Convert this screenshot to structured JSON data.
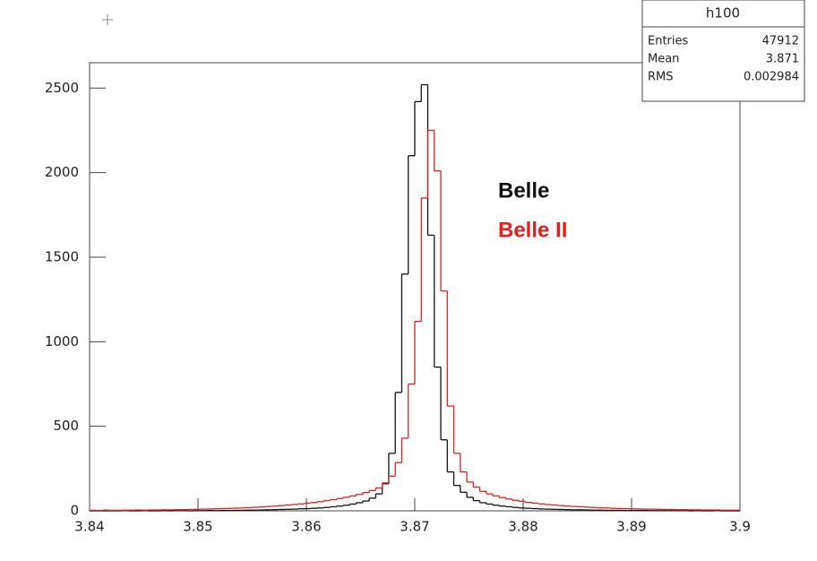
{
  "chart_data": {
    "type": "histogram",
    "bins": [
      3.84,
      3.8406,
      3.8412,
      3.8418,
      3.8424,
      3.843,
      3.8436,
      3.8442,
      3.8448,
      3.8454,
      3.846,
      3.8466,
      3.8472,
      3.8478,
      3.8484,
      3.849,
      3.8496,
      3.8502,
      3.8508,
      3.8514,
      3.852,
      3.8526,
      3.8532,
      3.8538,
      3.8544,
      3.855,
      3.8556,
      3.8562,
      3.8568,
      3.8574,
      3.858,
      3.8586,
      3.8592,
      3.8598,
      3.8604,
      3.861,
      3.8616,
      3.8622,
      3.8628,
      3.8634,
      3.864,
      3.8646,
      3.8652,
      3.8658,
      3.8664,
      3.867,
      3.8676,
      3.8682,
      3.8688,
      3.8694,
      3.87,
      3.8706,
      3.8712,
      3.8718,
      3.8724,
      3.873,
      3.8736,
      3.8742,
      3.8748,
      3.8754,
      3.876,
      3.8766,
      3.8772,
      3.8778,
      3.8784,
      3.879,
      3.8796,
      3.8802,
      3.8808,
      3.8814,
      3.882,
      3.8826,
      3.8832,
      3.8838,
      3.8844,
      3.885,
      3.8856,
      3.8862,
      3.8868,
      3.8874,
      3.888,
      3.8886,
      3.8892,
      3.8898,
      3.8904,
      3.891,
      3.8916,
      3.8922,
      3.8928,
      3.8934,
      3.894,
      3.8946,
      3.8952,
      3.8958,
      3.8964,
      3.897,
      3.8976,
      3.8982,
      3.8988,
      3.8994,
      3.9
    ],
    "series": [
      {
        "name": "Belle",
        "color": "#111111",
        "values": [
          0,
          0,
          0,
          0,
          0,
          1,
          0,
          0,
          1,
          0,
          0,
          1,
          0,
          1,
          1,
          0,
          1,
          1,
          2,
          1,
          2,
          2,
          3,
          3,
          4,
          4,
          5,
          6,
          7,
          8,
          9,
          10,
          12,
          13,
          15,
          17,
          20,
          24,
          28,
          33,
          40,
          48,
          58,
          75,
          100,
          160,
          340,
          700,
          1400,
          2100,
          2420,
          2520,
          1630,
          850,
          420,
          230,
          150,
          110,
          80,
          60,
          48,
          40,
          33,
          28,
          24,
          20,
          17,
          15,
          13,
          11,
          10,
          9,
          8,
          7,
          6,
          6,
          5,
          4,
          4,
          3,
          3,
          3,
          2,
          2,
          2,
          2,
          1,
          1,
          1,
          1,
          1,
          1,
          0,
          1,
          0,
          0,
          1,
          0,
          0,
          0
        ]
      },
      {
        "name": "Belle II",
        "color": "#e02020",
        "values": [
          3,
          2,
          4,
          3,
          3,
          4,
          4,
          5,
          4,
          5,
          5,
          6,
          6,
          7,
          7,
          8,
          9,
          10,
          11,
          12,
          13,
          14,
          16,
          17,
          19,
          21,
          23,
          26,
          28,
          31,
          34,
          37,
          41,
          45,
          49,
          54,
          60,
          66,
          73,
          80,
          88,
          97,
          108,
          120,
          135,
          165,
          205,
          285,
          430,
          750,
          1120,
          1850,
          2250,
          2010,
          1300,
          620,
          340,
          230,
          170,
          140,
          115,
          100,
          88,
          78,
          70,
          62,
          56,
          50,
          45,
          41,
          37,
          34,
          31,
          28,
          26,
          24,
          22,
          20,
          18,
          17,
          15,
          14,
          13,
          12,
          11,
          10,
          10,
          9,
          8,
          8,
          7,
          7,
          6,
          6,
          5,
          5,
          5,
          4,
          4,
          4
        ]
      }
    ],
    "xlim": [
      3.84,
      3.9
    ],
    "ylim": [
      0,
      2650
    ],
    "xticks": [
      3.84,
      3.85,
      3.86,
      3.87,
      3.88,
      3.89,
      3.9
    ],
    "yticks": [
      0,
      500,
      1000,
      1500,
      2000,
      2500
    ],
    "stats": {
      "title": "h100",
      "rows": [
        {
          "label": "Entries",
          "value": 47912
        },
        {
          "label": "Mean",
          "value": 3.871
        },
        {
          "label": "RMS",
          "value": 0.002984
        }
      ]
    }
  }
}
